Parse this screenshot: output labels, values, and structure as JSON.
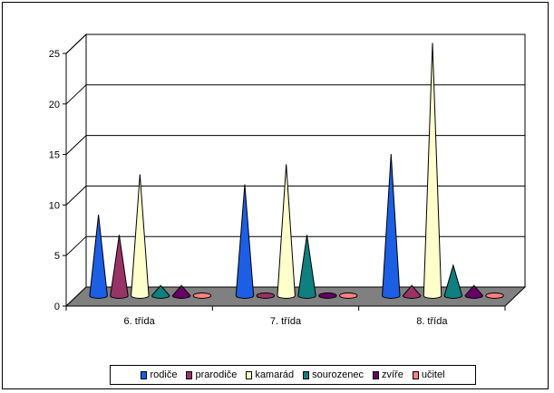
{
  "chart_data": {
    "type": "bar",
    "subtype": "3d-cone",
    "categories": [
      "6. třída",
      "7. třída",
      "8. třída"
    ],
    "series": [
      {
        "name": "rodiče",
        "color": "#1c5ee4",
        "values": [
          8,
          11,
          14
        ]
      },
      {
        "name": "prarodiče",
        "color": "#993366",
        "values": [
          6,
          0,
          1
        ]
      },
      {
        "name": "kamarád",
        "color": "#ffffcc",
        "values": [
          12,
          13,
          25
        ]
      },
      {
        "name": "sourozenec",
        "color": "#0f7f7f",
        "values": [
          1,
          6,
          3
        ]
      },
      {
        "name": "zvíře",
        "color": "#660066",
        "values": [
          1,
          0,
          1
        ]
      },
      {
        "name": "učitel",
        "color": "#ff8080",
        "values": [
          0,
          0,
          0
        ]
      }
    ],
    "yticks": [
      0,
      5,
      10,
      15,
      20,
      25
    ],
    "ylim": [
      0,
      25
    ],
    "grid": true,
    "legend_position": "bottom"
  }
}
